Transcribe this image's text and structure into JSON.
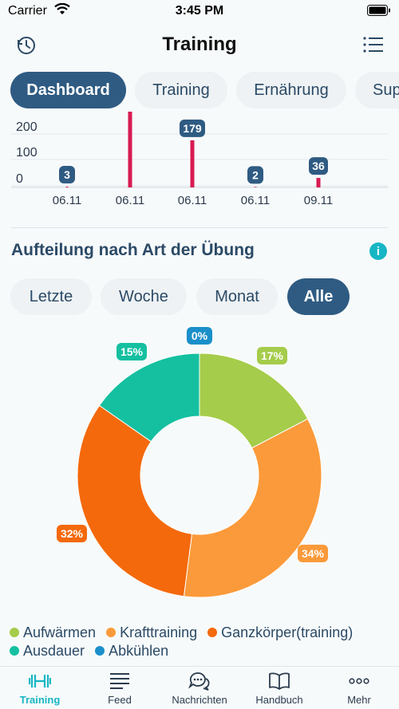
{
  "status": {
    "carrier": "Carrier",
    "time": "3:45 PM"
  },
  "nav": {
    "title": "Training",
    "left_icon": "history-clock-icon",
    "right_icon": "list-menu-icon"
  },
  "tabs": [
    {
      "label": "Dashboard",
      "active": true
    },
    {
      "label": "Training",
      "active": false
    },
    {
      "label": "Ernährung",
      "active": false
    },
    {
      "label": "Sup",
      "active": false
    }
  ],
  "chart_data": [
    {
      "type": "bar",
      "categories": [
        "06.11",
        "06.11",
        "06.11",
        "06.11",
        "09.11"
      ],
      "values": [
        3,
        304,
        179,
        2,
        36
      ],
      "data_labels": [
        "3",
        "",
        "179",
        "2",
        "36"
      ],
      "y_ticks": [
        "200",
        "100",
        "0"
      ],
      "ylim": [
        0,
        260
      ],
      "color": "#d81b52"
    },
    {
      "type": "pie",
      "title": "Aufteilung nach Art der Übung",
      "slices": [
        {
          "name": "Aufwärmen",
          "value": 17,
          "label": "17%",
          "color": "#a5cc4a"
        },
        {
          "name": "Krafttraining",
          "value": 34,
          "label": "34%",
          "color": "#fb9a3a"
        },
        {
          "name": "Ganzkörper(training)",
          "value": 32,
          "label": "32%",
          "color": "#f4690c"
        },
        {
          "name": "Ausdauer",
          "value": 15,
          "label": "15%",
          "color": "#14c0a0"
        },
        {
          "name": "Abkühlen",
          "value": 0,
          "label": "0%",
          "color": "#1a8fc9"
        }
      ]
    }
  ],
  "filters": [
    {
      "label": "Letzte",
      "active": false
    },
    {
      "label": "Woche",
      "active": false
    },
    {
      "label": "Monat",
      "active": false
    },
    {
      "label": "Alle",
      "active": true
    }
  ],
  "info_icon": "i",
  "tabbar": [
    {
      "label": "Training",
      "icon": "dumbbell-icon",
      "active": true
    },
    {
      "label": "Feed",
      "icon": "feed-lines-icon",
      "active": false
    },
    {
      "label": "Nachrichten",
      "icon": "chat-bubbles-icon",
      "active": false
    },
    {
      "label": "Handbuch",
      "icon": "open-book-icon",
      "active": false
    },
    {
      "label": "Mehr",
      "icon": "more-dots-icon",
      "active": false
    }
  ]
}
